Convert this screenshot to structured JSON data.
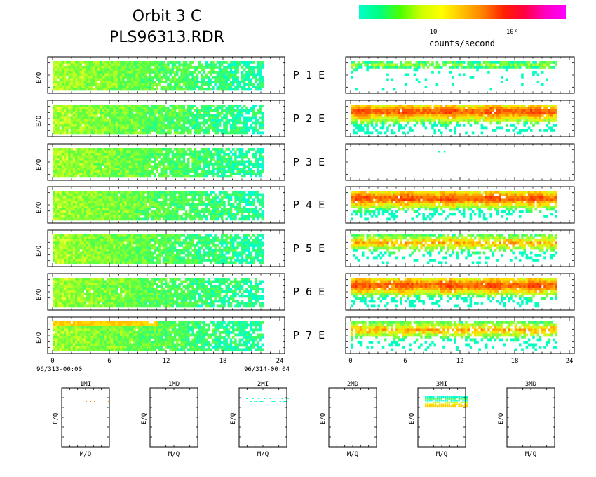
{
  "header": {
    "title": "Orbit 3 C",
    "subtitle": "PLS96313.RDR"
  },
  "colorbar": {
    "label": "counts/second",
    "ticks": [
      "10",
      "10²"
    ],
    "colors": [
      "#00ffc8",
      "#00ff80",
      "#4cff00",
      "#ccff00",
      "#ffff00",
      "#ffc000",
      "#ff8000",
      "#ff2000",
      "#ff0040",
      "#ff00c0",
      "#ff00ff"
    ]
  },
  "chart_data": {
    "type": "heatmap",
    "panels": {
      "ylabel": "E/Q",
      "row_labels": [
        "P  1  E",
        "P  2  E",
        "P  3  E",
        "P  4  E",
        "P  5  E",
        "P  6  E",
        "P  7  E"
      ],
      "xlim": [
        0,
        24
      ],
      "x_ticks": [
        "0",
        "6",
        "12",
        "18",
        "24"
      ],
      "start_time": "96/313-00:00",
      "end_time": "96/314-00:04",
      "left_data_end_hour": 22.5,
      "right_data_end_hour": 22.8,
      "right_band_levels": [
        "low",
        "high",
        "none",
        "high",
        "medium",
        "high",
        "medium"
      ]
    },
    "mass_plots": {
      "xlabel": "M/Q",
      "ylabel": "E/Q",
      "titles": [
        "1MI",
        "1MD",
        "2MI",
        "2MD",
        "3MI",
        "3MD"
      ]
    }
  }
}
